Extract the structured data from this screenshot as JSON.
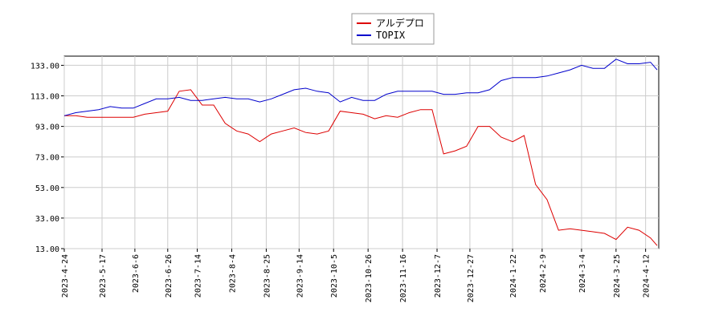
{
  "chart_data": {
    "type": "line",
    "x": [
      "2023-4-24",
      "2023-5-1",
      "2023-5-8",
      "2023-5-15",
      "2023-5-22",
      "2023-5-29",
      "2023-6-5",
      "2023-6-12",
      "2023-6-19",
      "2023-6-26",
      "2023-7-3",
      "2023-7-10",
      "2023-7-17",
      "2023-7-24",
      "2023-7-31",
      "2023-8-7",
      "2023-8-14",
      "2023-8-21",
      "2023-8-28",
      "2023-9-4",
      "2023-9-11",
      "2023-9-18",
      "2023-9-25",
      "2023-10-2",
      "2023-10-9",
      "2023-10-16",
      "2023-10-23",
      "2023-10-30",
      "2023-11-6",
      "2023-11-13",
      "2023-11-20",
      "2023-11-27",
      "2023-12-4",
      "2023-12-11",
      "2023-12-18",
      "2023-12-25",
      "2024-1-1",
      "2024-1-8",
      "2024-1-15",
      "2024-1-22",
      "2024-1-29",
      "2024-2-5",
      "2024-2-12",
      "2024-2-19",
      "2024-2-26",
      "2024-3-4",
      "2024-3-11",
      "2024-3-18",
      "2024-3-25",
      "2024-4-1",
      "2024-4-8",
      "2024-4-15",
      "2024-4-19"
    ],
    "series": [
      {
        "name": "アルデプロ",
        "color": "#dd0000",
        "values": [
          100,
          100,
          99,
          99,
          99,
          99,
          99,
          101,
          102,
          103,
          116,
          117,
          107,
          107,
          95,
          90,
          88,
          83,
          88,
          90,
          92,
          89,
          88,
          90,
          103,
          102,
          101,
          98,
          100,
          99,
          102,
          104,
          104,
          75,
          77,
          80,
          93,
          93,
          86,
          83,
          87,
          55,
          45,
          25,
          26,
          25,
          24,
          23,
          19,
          27,
          25,
          20,
          15
        ]
      },
      {
        "name": "TOPIX",
        "color": "#0000cc",
        "values": [
          100,
          102,
          103,
          104,
          106,
          105,
          105,
          108,
          111,
          111,
          112,
          110,
          110,
          111,
          112,
          111,
          111,
          109,
          111,
          114,
          117,
          118,
          116,
          115,
          109,
          112,
          110,
          110,
          114,
          116,
          116,
          116,
          116,
          114,
          114,
          115,
          115,
          117,
          123,
          125,
          125,
          125,
          126,
          128,
          130,
          133,
          131,
          131,
          137,
          134,
          134,
          135,
          130
        ]
      }
    ],
    "xlim": [
      "2023-4-24",
      "2024-4-20"
    ],
    "xticks": [
      "2023-4-24",
      "2023-5-17",
      "2023-6-6",
      "2023-6-26",
      "2023-7-14",
      "2023-8-4",
      "2023-8-25",
      "2023-9-14",
      "2023-10-5",
      "2023-10-26",
      "2023-11-16",
      "2023-12-7",
      "2023-12-27",
      "2024-1-22",
      "2024-2-9",
      "2024-3-4",
      "2024-3-25",
      "2024-4-12"
    ],
    "ylim": [
      13,
      139
    ],
    "yticks": [
      {
        "value": 13,
        "label": "13.00"
      },
      {
        "value": 33,
        "label": "33.00"
      },
      {
        "value": 53,
        "label": "53.00"
      },
      {
        "value": 73,
        "label": "73.00"
      },
      {
        "value": 93,
        "label": "93.00"
      },
      {
        "value": 113,
        "label": "113.00"
      },
      {
        "value": 133,
        "label": "133.00"
      }
    ],
    "grid": true
  }
}
